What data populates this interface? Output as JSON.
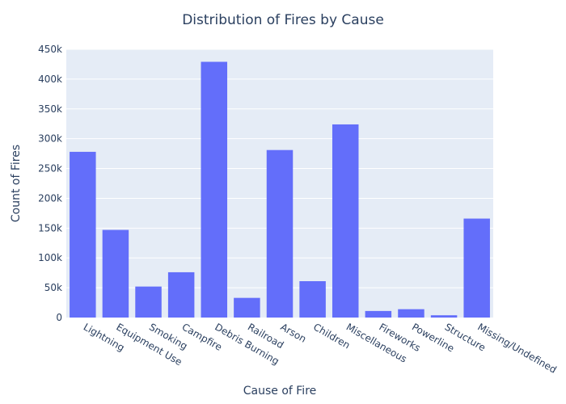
{
  "chart_data": {
    "type": "bar",
    "title": "Distribution of Fires by Cause",
    "xlabel": "Cause of Fire",
    "ylabel": "Count of Fires",
    "categories": [
      "Lightning",
      "Equipment Use",
      "Smoking",
      "Campfire",
      "Debris Burning",
      "Railroad",
      "Arson",
      "Children",
      "Miscellaneous",
      "Fireworks",
      "Powerline",
      "Structure",
      "Missing/Undefined"
    ],
    "values": [
      278000,
      147000,
      52000,
      76000,
      429000,
      33000,
      281000,
      61000,
      324000,
      11000,
      14000,
      3800,
      166000
    ],
    "ylim": [
      0,
      450000
    ],
    "yticks": [
      0,
      50000,
      100000,
      150000,
      200000,
      250000,
      300000,
      350000,
      400000,
      450000
    ],
    "ytick_labels": [
      "0",
      "50k",
      "100k",
      "150k",
      "200k",
      "250k",
      "300k",
      "350k",
      "400k",
      "450k"
    ],
    "grid": true,
    "bar_color": "#636efa",
    "plot_bg": "#e5ecf6"
  }
}
